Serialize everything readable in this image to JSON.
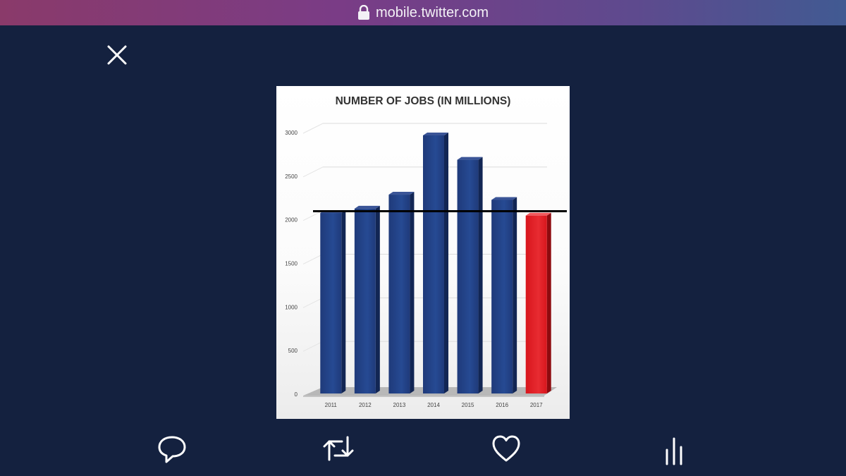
{
  "browser": {
    "url": "mobile.twitter.com",
    "icons": [
      "lock-icon"
    ]
  },
  "viewer": {
    "close_icon": "close-icon"
  },
  "actions": {
    "icons": [
      "reply-icon",
      "retweet-icon",
      "like-icon",
      "analytics-icon"
    ]
  },
  "colors": {
    "background": "#14213f",
    "bar_blue": "#1f3a7a",
    "bar_red": "#d8161d",
    "reference_line": "#000000"
  },
  "chart_data": {
    "type": "bar",
    "title": "NUMBER OF JOBS (IN MILLIONS)",
    "categories": [
      "2011",
      "2012",
      "2013",
      "2014",
      "2015",
      "2016",
      "2017"
    ],
    "values": [
      2070,
      2120,
      2280,
      2960,
      2680,
      2220,
      2040
    ],
    "highlight_index": 6,
    "reference_line": 2090,
    "ylim": [
      0,
      3000
    ],
    "yticks": [
      "0",
      "500",
      "1000",
      "1500",
      "2000",
      "2500",
      "3000"
    ],
    "grid": true,
    "xlabel": "",
    "ylabel": ""
  }
}
